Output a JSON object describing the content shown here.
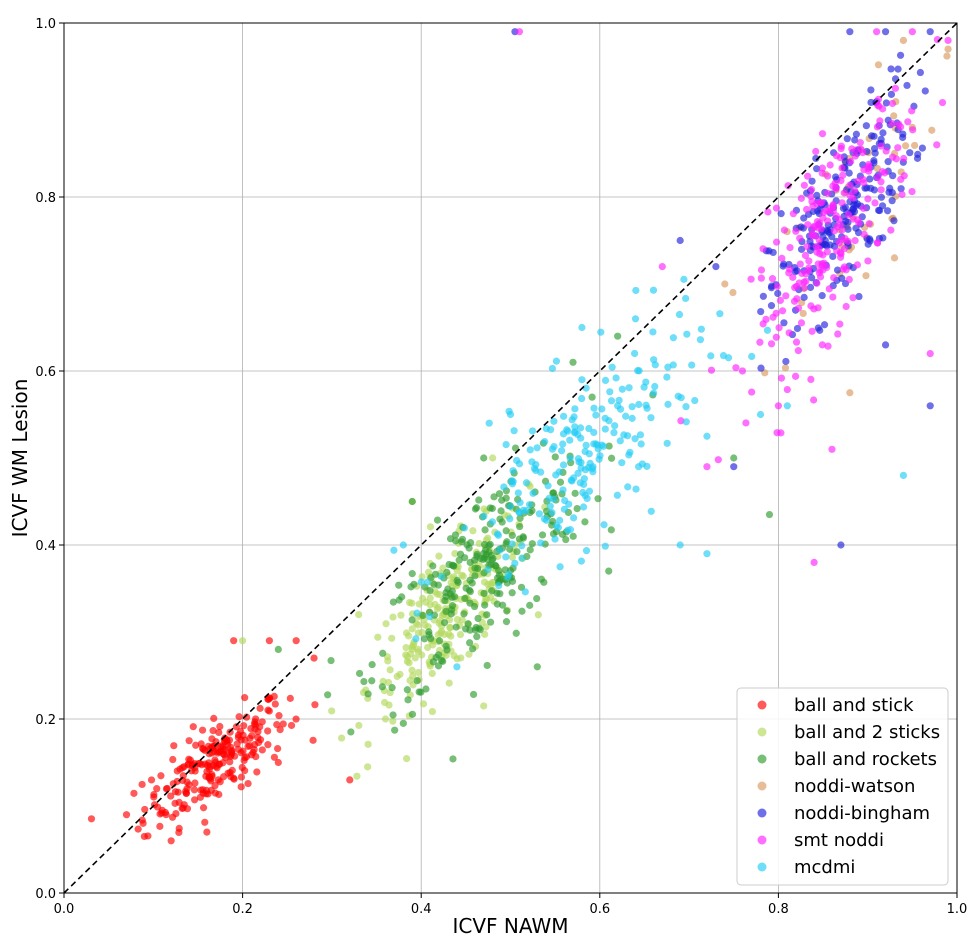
{
  "chart_data": {
    "type": "scatter",
    "title": "",
    "xlabel": "ICVF NAWM",
    "ylabel": "ICVF WM Lesion",
    "xlim": [
      0.0,
      1.0
    ],
    "ylim": [
      0.0,
      1.0
    ],
    "xticks": [
      "0.0",
      "0.2",
      "0.4",
      "0.6",
      "0.8",
      "1.0"
    ],
    "yticks": [
      "0.0",
      "0.2",
      "0.4",
      "0.6",
      "0.8",
      "1.0"
    ],
    "grid": true,
    "legend_position": "lower-right",
    "reference_line": {
      "style": "dashed",
      "color": "#000000",
      "from": [
        0,
        0
      ],
      "to": [
        1,
        1
      ]
    },
    "series": [
      {
        "name": "ball and stick",
        "color": "#ff0000",
        "center": [
          0.17,
          0.15
        ],
        "spread": [
          0.04,
          0.035
        ],
        "count": 230,
        "points": [
          [
            0.07,
            0.09
          ],
          [
            0.09,
            0.065
          ],
          [
            0.12,
            0.06
          ],
          [
            0.11,
            0.095
          ],
          [
            0.16,
            0.07
          ],
          [
            0.19,
            0.29
          ],
          [
            0.23,
            0.29
          ],
          [
            0.26,
            0.29
          ],
          [
            0.28,
            0.27
          ],
          [
            0.32,
            0.13
          ],
          [
            0.24,
            0.15
          ]
        ]
      },
      {
        "name": "ball and 2 sticks",
        "color": "#b2d95a",
        "center": [
          0.43,
          0.32
        ],
        "spread": [
          0.045,
          0.055
        ],
        "count": 230,
        "points": [
          [
            0.2,
            0.29
          ],
          [
            0.34,
            0.145
          ],
          [
            0.36,
            0.2
          ],
          [
            0.47,
            0.215
          ],
          [
            0.33,
            0.32
          ],
          [
            0.39,
            0.45
          ],
          [
            0.48,
            0.5
          ],
          [
            0.52,
            0.47
          ]
        ]
      },
      {
        "name": "ball and rockets",
        "color": "#2e9b2e",
        "center": [
          0.47,
          0.37
        ],
        "spread": [
          0.06,
          0.07
        ],
        "count": 250,
        "points": [
          [
            0.38,
            0.195
          ],
          [
            0.53,
            0.26
          ],
          [
            0.39,
            0.45
          ],
          [
            0.47,
            0.5
          ],
          [
            0.57,
            0.61
          ],
          [
            0.62,
            0.64
          ],
          [
            0.75,
            0.5
          ],
          [
            0.79,
            0.435
          ],
          [
            0.61,
            0.37
          ],
          [
            0.24,
            0.28
          ]
        ]
      },
      {
        "name": "noddi-watson",
        "color": "#d99a5e",
        "center": [
          0.88,
          0.79
        ],
        "spread": [
          0.05,
          0.08
        ],
        "count": 45,
        "points": [
          [
            0.94,
            0.98
          ],
          [
            0.99,
            0.97
          ],
          [
            0.93,
            0.85
          ],
          [
            0.95,
            0.88
          ],
          [
            0.74,
            0.7
          ],
          [
            0.88,
            0.575
          ],
          [
            0.93,
            0.73
          ]
        ]
      },
      {
        "name": "noddi-bingham",
        "color": "#2222dd",
        "center": [
          0.87,
          0.78
        ],
        "spread": [
          0.04,
          0.07
        ],
        "count": 220,
        "points": [
          [
            0.505,
            0.99
          ],
          [
            0.88,
            0.99
          ],
          [
            0.92,
            0.99
          ],
          [
            0.97,
            0.99
          ],
          [
            0.87,
            0.4
          ],
          [
            0.97,
            0.56
          ],
          [
            0.75,
            0.49
          ],
          [
            0.73,
            0.72
          ],
          [
            0.69,
            0.75
          ],
          [
            0.92,
            0.63
          ]
        ]
      },
      {
        "name": "smt noddi",
        "color": "#ff22ff",
        "center": [
          0.86,
          0.76
        ],
        "spread": [
          0.045,
          0.08
        ],
        "count": 230,
        "points": [
          [
            0.51,
            0.99
          ],
          [
            0.91,
            0.99
          ],
          [
            0.95,
            0.99
          ],
          [
            0.99,
            0.98
          ],
          [
            0.72,
            0.49
          ],
          [
            0.84,
            0.38
          ],
          [
            0.86,
            0.51
          ],
          [
            0.97,
            0.62
          ],
          [
            0.67,
            0.72
          ],
          [
            0.8,
            0.56
          ]
        ]
      },
      {
        "name": "mcdmi",
        "color": "#22ccf5",
        "center": [
          0.58,
          0.5
        ],
        "spread": [
          0.07,
          0.075
        ],
        "count": 220,
        "points": [
          [
            0.38,
            0.4
          ],
          [
            0.44,
            0.26
          ],
          [
            0.5,
            0.55
          ],
          [
            0.58,
            0.59
          ],
          [
            0.58,
            0.65
          ],
          [
            0.69,
            0.4
          ],
          [
            0.72,
            0.39
          ],
          [
            0.72,
            0.525
          ],
          [
            0.78,
            0.55
          ],
          [
            0.81,
            0.56
          ],
          [
            0.94,
            0.48
          ],
          [
            0.62,
            0.56
          ],
          [
            0.64,
            0.66
          ]
        ]
      }
    ]
  }
}
